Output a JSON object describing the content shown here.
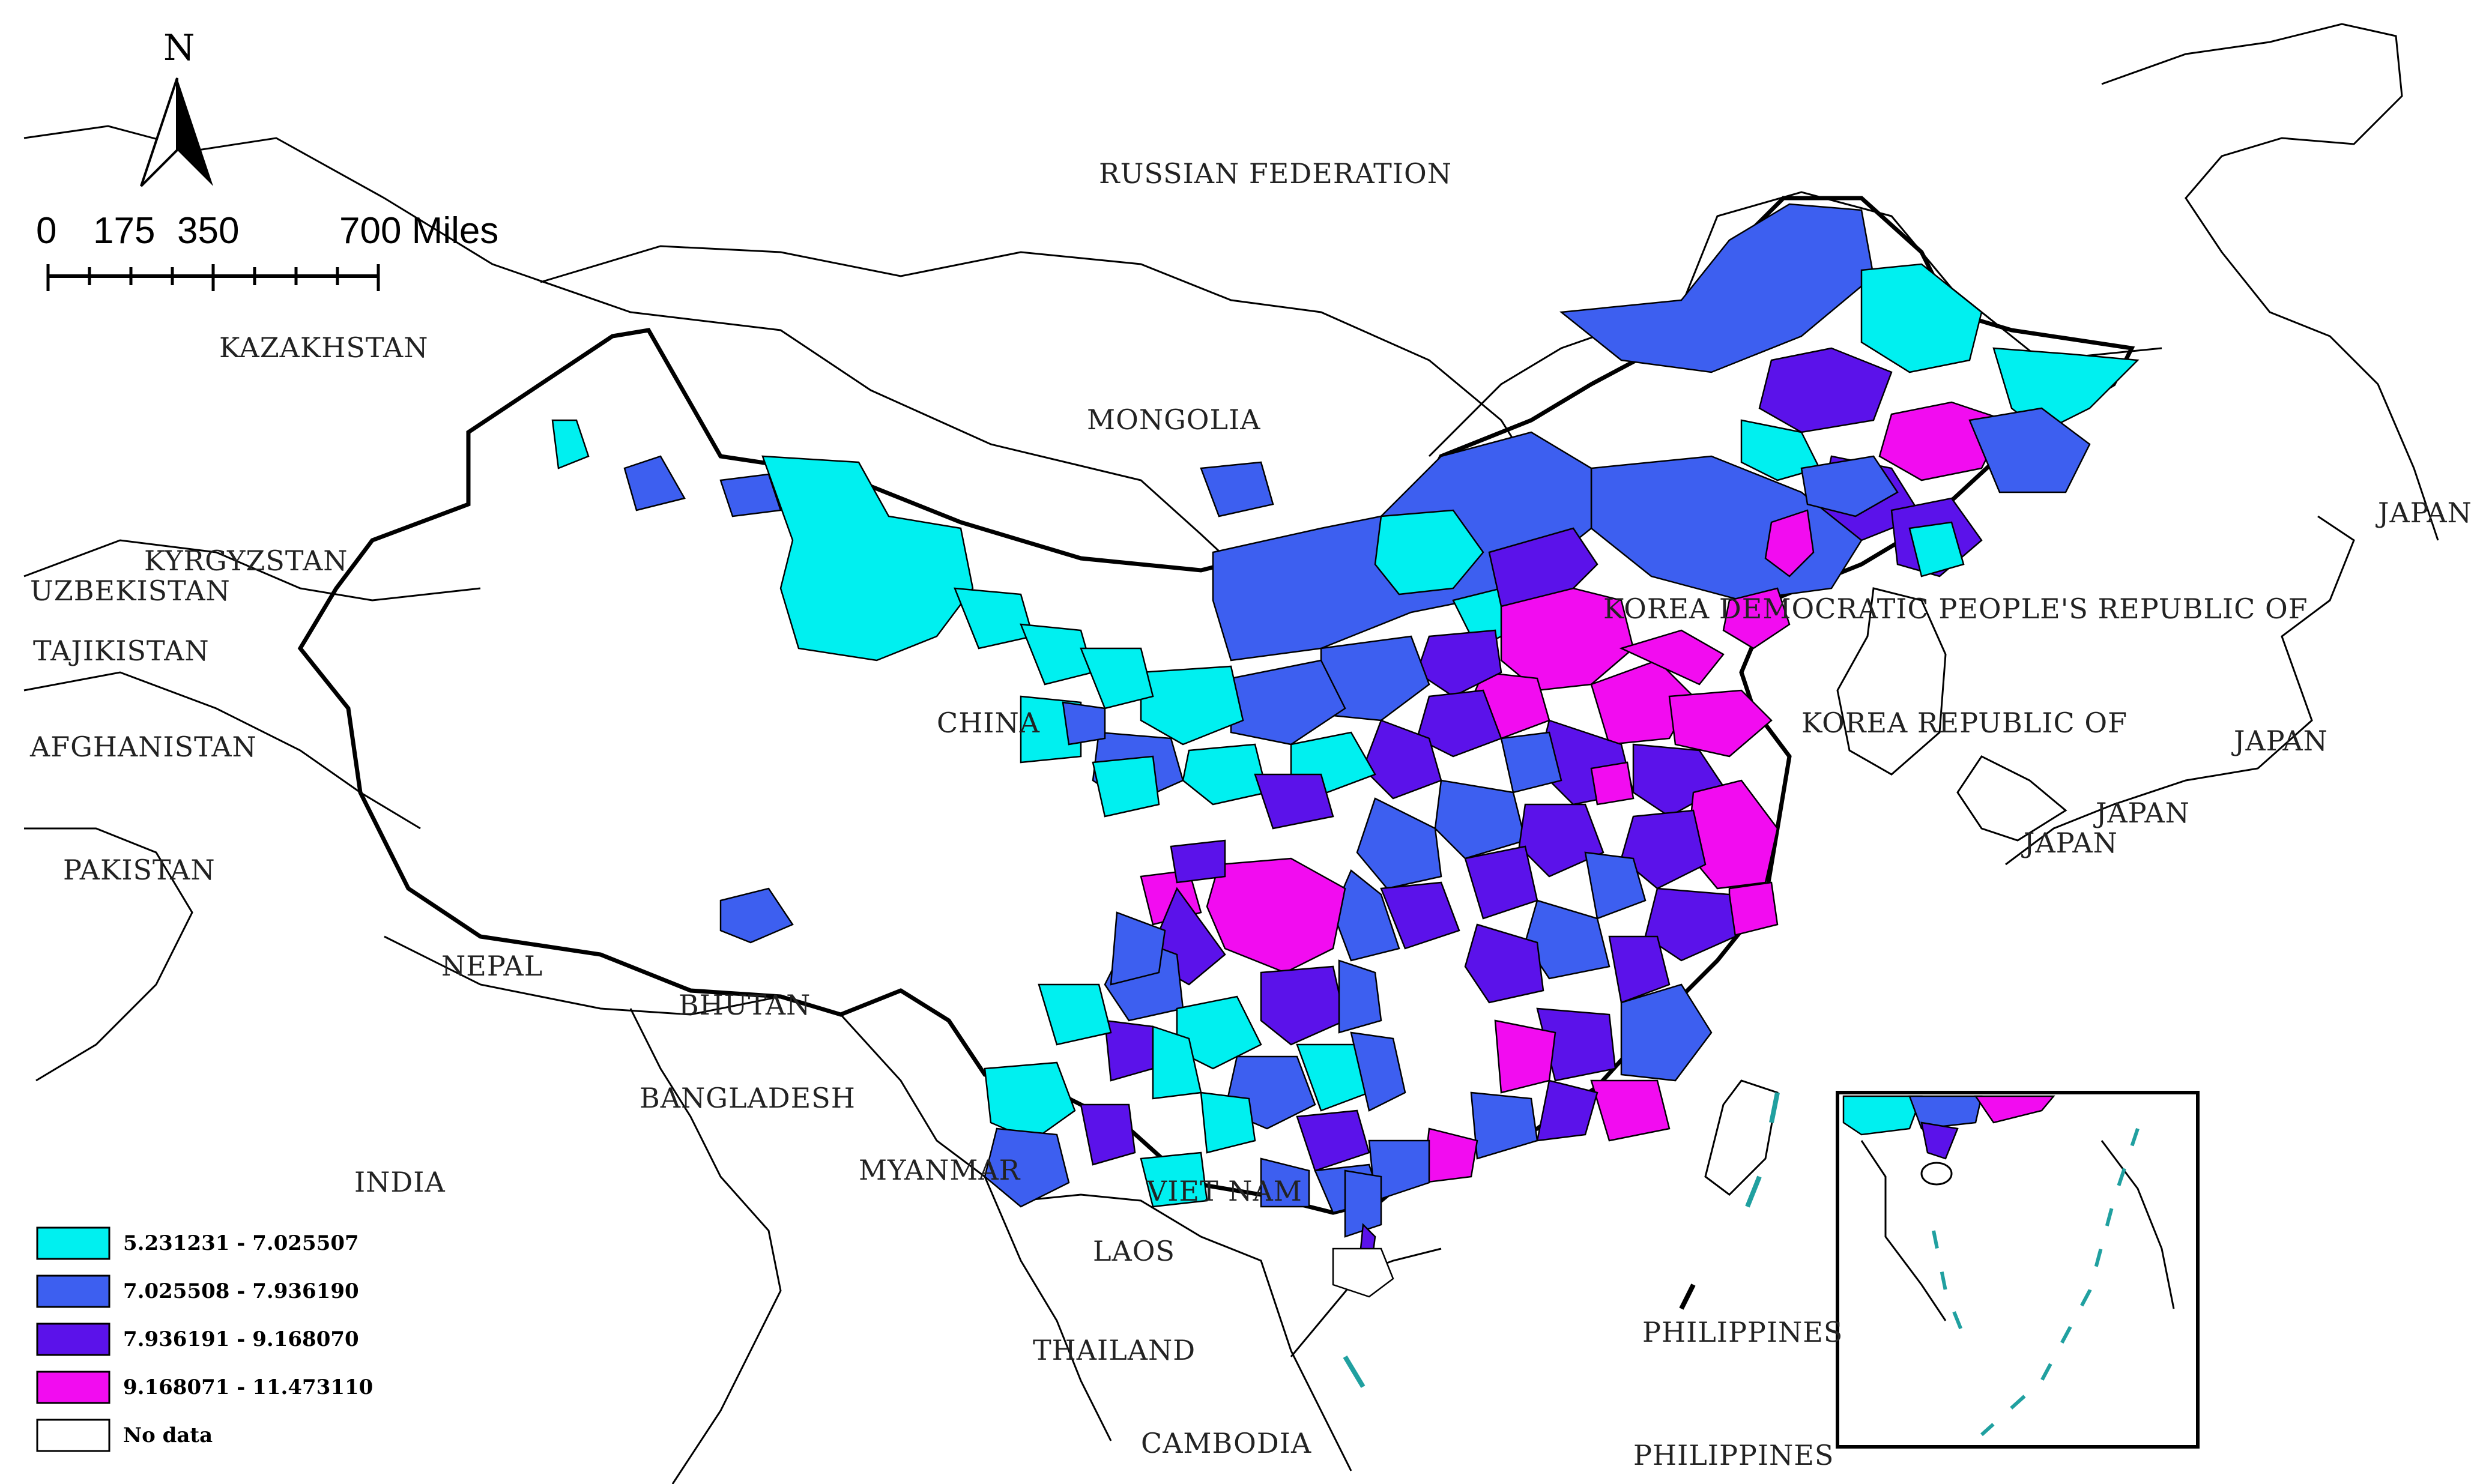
{
  "north_arrow": {
    "label": "N"
  },
  "scale_bar": {
    "labels": [
      "0",
      "175",
      "350",
      "700 Miles"
    ]
  },
  "country_labels": [
    {
      "id": "russia",
      "text": "RUSSIAN FEDERATION"
    },
    {
      "id": "kazakhstan",
      "text": "KAZAKHSTAN"
    },
    {
      "id": "mongolia",
      "text": "MONGOLIA"
    },
    {
      "id": "kyrgyzstan",
      "text": "KYRGYZSTAN"
    },
    {
      "id": "uzbekistan",
      "text": "UZBEKISTAN"
    },
    {
      "id": "tajikistan",
      "text": "TAJIKISTAN"
    },
    {
      "id": "afghanistan",
      "text": "AFGHANISTAN"
    },
    {
      "id": "pakistan",
      "text": "PAKISTAN"
    },
    {
      "id": "china",
      "text": "CHINA"
    },
    {
      "id": "nepal",
      "text": "NEPAL"
    },
    {
      "id": "bhutan",
      "text": "BHUTAN"
    },
    {
      "id": "bangladesh",
      "text": "BANGLADESH"
    },
    {
      "id": "india",
      "text": "INDIA"
    },
    {
      "id": "myanmar",
      "text": "MYANMAR"
    },
    {
      "id": "vietnam",
      "text": "VIET NAM"
    },
    {
      "id": "laos",
      "text": "LAOS"
    },
    {
      "id": "thailand",
      "text": "THAILAND"
    },
    {
      "id": "cambodia",
      "text": "CAMBODIA"
    },
    {
      "id": "philippines1",
      "text": "PHILIPPINES"
    },
    {
      "id": "philippines2",
      "text": "PHILIPPINES"
    },
    {
      "id": "dprk",
      "text": "KOREA DEMOCRATIC PEOPLE'S REPUBLIC OF"
    },
    {
      "id": "rok",
      "text": "KOREA REPUBLIC OF"
    },
    {
      "id": "japan1",
      "text": "JAPAN"
    },
    {
      "id": "japan2",
      "text": "JAPAN"
    },
    {
      "id": "japan3",
      "text": "JAPAN"
    },
    {
      "id": "japan4",
      "text": "JAPAN"
    }
  ],
  "colors": {
    "class1": "#00f0f0",
    "class2": "#3d5ff0",
    "class3": "#5b12ea",
    "class4": "#f20cf0",
    "nodata": "#ffffff"
  },
  "legend": {
    "items": [
      {
        "label": "5.231231 - 7.025507",
        "color": "#00f0f0"
      },
      {
        "label": "7.025508 - 7.936190",
        "color": "#3d5ff0"
      },
      {
        "label": "7.936191 - 9.168070",
        "color": "#5b12ea"
      },
      {
        "label": "9.168071 - 11.473110",
        "color": "#f20cf0"
      },
      {
        "label": "No data",
        "color": "#ffffff"
      }
    ]
  }
}
